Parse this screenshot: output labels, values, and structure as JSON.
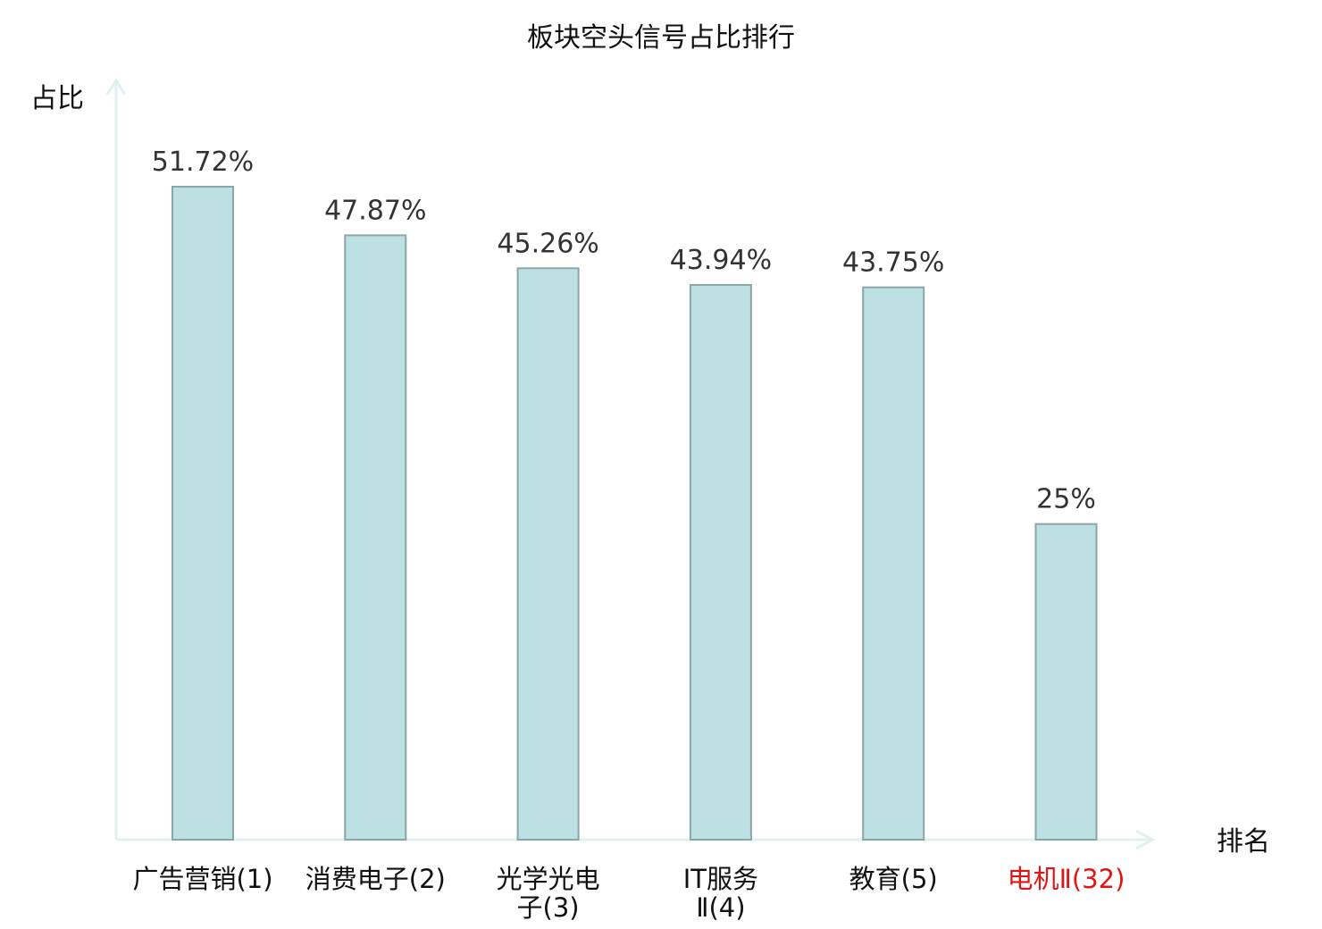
{
  "chart_data": {
    "type": "bar",
    "title": "板块空头信号占比排行",
    "ylabel": "占比",
    "xlabel": "排名",
    "categories": [
      [
        "广告营销(1)"
      ],
      [
        "消费电子(2)"
      ],
      [
        "光学光电",
        "子(3)"
      ],
      [
        "IT服务",
        "Ⅱ(4)"
      ],
      [
        "教育(5)"
      ],
      [
        "电机Ⅱ(32)"
      ]
    ],
    "values": [
      51.72,
      47.87,
      45.26,
      43.94,
      43.75,
      25
    ],
    "value_labels": [
      "51.72%",
      "47.87%",
      "45.26%",
      "43.94%",
      "43.75%",
      "25%"
    ],
    "highlight_index": 5,
    "ylim": [
      0,
      60
    ],
    "grid": false,
    "colors": {
      "bar_fill": "#bde0e3",
      "bar_stroke": "#8aa6a6",
      "axis": "#dff1ef",
      "label": "#111111",
      "highlight_label": "#e31414",
      "value_label": "#333333"
    }
  }
}
